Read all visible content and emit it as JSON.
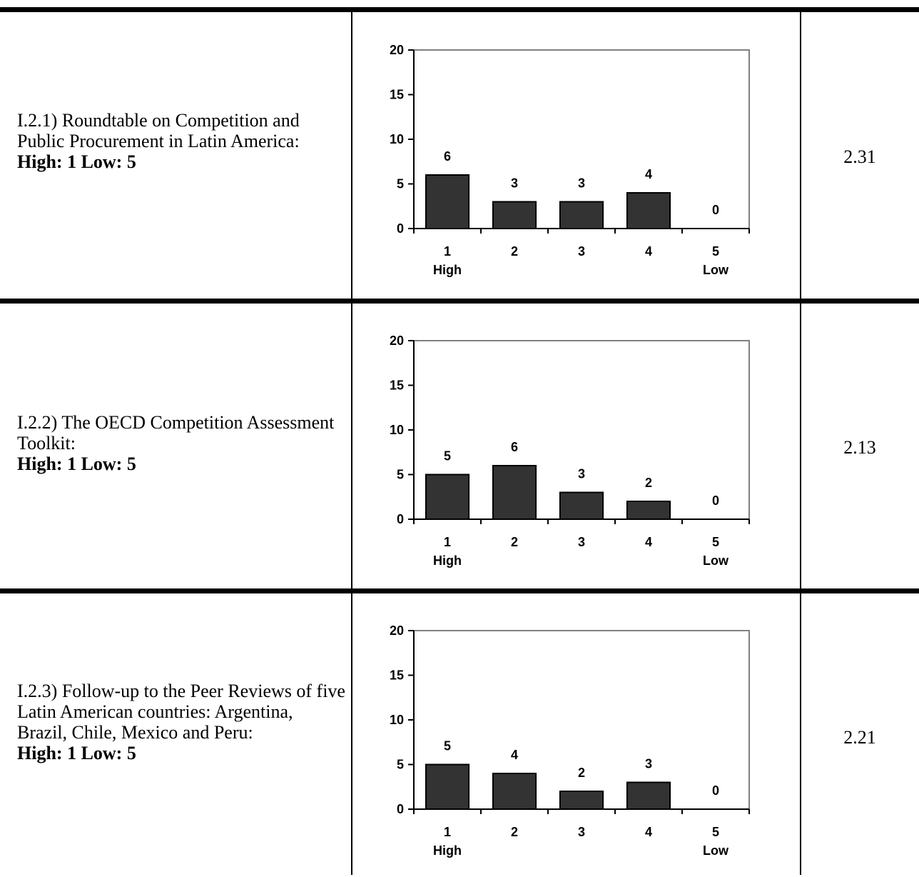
{
  "rows": [
    {
      "label": "I.2.1)  Roundtable on Competition and Public Procurement in Latin America:",
      "scale": "High: 1  Low: 5",
      "score": "2.31"
    },
    {
      "label": "I.2.2)  The OECD Competition Assessment Toolkit:",
      "scale": "High: 1  Low: 5",
      "score": "2.13"
    },
    {
      "label": "I.2.3)  Follow-up to the Peer Reviews of five Latin American countries: Argentina, Brazil, Chile, Mexico and Peru:",
      "scale": "High: 1  Low: 5",
      "score": "2.21"
    }
  ],
  "colors": {
    "bar": "#333333",
    "axis": "#000000",
    "frame": "#808080"
  },
  "chart_data": [
    {
      "type": "bar",
      "categories": [
        "1",
        "2",
        "3",
        "4",
        "5"
      ],
      "category_sublabels": [
        "High",
        "",
        "",
        "",
        "Low"
      ],
      "values": [
        6,
        3,
        3,
        4,
        0
      ],
      "ylim": [
        0,
        20
      ],
      "yticks": [
        0,
        5,
        10,
        15,
        20
      ],
      "grid": false,
      "data_labels": true
    },
    {
      "type": "bar",
      "categories": [
        "1",
        "2",
        "3",
        "4",
        "5"
      ],
      "category_sublabels": [
        "High",
        "",
        "",
        "",
        "Low"
      ],
      "values": [
        5,
        6,
        3,
        2,
        0
      ],
      "ylim": [
        0,
        20
      ],
      "yticks": [
        0,
        5,
        10,
        15,
        20
      ],
      "grid": false,
      "data_labels": true
    },
    {
      "type": "bar",
      "categories": [
        "1",
        "2",
        "3",
        "4",
        "5"
      ],
      "category_sublabels": [
        "High",
        "",
        "",
        "",
        "Low"
      ],
      "values": [
        5,
        4,
        2,
        3,
        0
      ],
      "ylim": [
        0,
        20
      ],
      "yticks": [
        0,
        5,
        10,
        15,
        20
      ],
      "grid": false,
      "data_labels": true
    }
  ]
}
